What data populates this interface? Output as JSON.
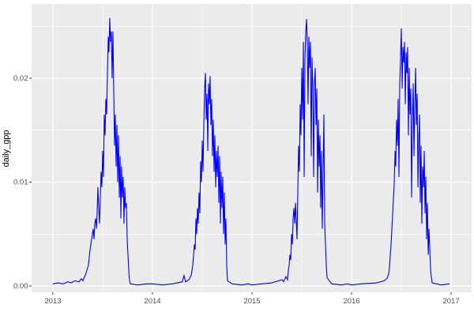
{
  "figure": {
    "bg": "#FFFFFF",
    "panel_bg": "#EBEBEB",
    "grid_major_color": "#FFFFFF",
    "grid_minor_color": "#FFFFFF",
    "tick_mark_color": "#333333",
    "tick_text_color": "#4D4D4D",
    "axis_title_color": "#000000",
    "line_color": "#0000FF"
  },
  "chart_data": {
    "type": "line",
    "title": "",
    "xlabel": "",
    "ylabel": "daily_gpp",
    "grid": true,
    "legend": false,
    "theme": "ggplot-gray",
    "xlim": [
      2012.786,
      2017.206
    ],
    "ylim": [
      -0.00061,
      0.02715
    ],
    "x_ticks": [
      2013,
      2014,
      2015,
      2016,
      2017
    ],
    "x_tick_labels": [
      "2013",
      "2014",
      "2015",
      "2016",
      "2017"
    ],
    "x_minor": [
      2013.5,
      2014.5,
      2015.5,
      2016.5
    ],
    "y_ticks": [
      0.0,
      0.01,
      0.02
    ],
    "y_tick_labels": [
      "0.00",
      "0.01",
      "0.02"
    ],
    "y_minor": [
      0.005,
      0.015,
      0.025
    ],
    "series": [
      {
        "name": "daily_gpp",
        "color": "#0000FF",
        "points": [
          [
            2013.0,
            0.0002
          ],
          [
            2013.05,
            0.0003
          ],
          [
            2013.103,
            0.0002
          ],
          [
            2013.15,
            0.0004
          ],
          [
            2013.183,
            0.0003
          ],
          [
            2013.222,
            0.0005
          ],
          [
            2013.262,
            0.0004
          ],
          [
            2013.286,
            0.0007
          ],
          [
            2013.302,
            0.0005
          ],
          [
            2013.317,
            0.0009
          ],
          [
            2013.325,
            0.001
          ],
          [
            2013.341,
            0.0015
          ],
          [
            2013.357,
            0.002
          ],
          [
            2013.373,
            0.0035
          ],
          [
            2013.381,
            0.004
          ],
          [
            2013.397,
            0.005
          ],
          [
            2013.405,
            0.0055
          ],
          [
            2013.413,
            0.0045
          ],
          [
            2013.421,
            0.006
          ],
          [
            2013.429,
            0.0065
          ],
          [
            2013.437,
            0.0055
          ],
          [
            2013.444,
            0.007
          ],
          [
            2013.452,
            0.0095
          ],
          [
            2013.46,
            0.0075
          ],
          [
            2013.468,
            0.006
          ],
          [
            2013.476,
            0.0085
          ],
          [
            2013.484,
            0.011
          ],
          [
            2013.492,
            0.0095
          ],
          [
            2013.5,
            0.013
          ],
          [
            2013.508,
            0.0105
          ],
          [
            2013.516,
            0.0165
          ],
          [
            2013.524,
            0.0145
          ],
          [
            2013.532,
            0.018
          ],
          [
            2013.54,
            0.0165
          ],
          [
            2013.548,
            0.0205
          ],
          [
            2013.556,
            0.024
          ],
          [
            2013.563,
            0.0225
          ],
          [
            2013.571,
            0.0258
          ],
          [
            2013.579,
            0.0235
          ],
          [
            2013.587,
            0.0245
          ],
          [
            2013.595,
            0.02
          ],
          [
            2013.603,
            0.0245
          ],
          [
            2013.611,
            0.019
          ],
          [
            2013.619,
            0.0135
          ],
          [
            2013.627,
            0.0165
          ],
          [
            2013.635,
            0.0115
          ],
          [
            2013.643,
            0.0155
          ],
          [
            2013.651,
            0.01
          ],
          [
            2013.659,
            0.0145
          ],
          [
            2013.667,
            0.0085
          ],
          [
            2013.675,
            0.0125
          ],
          [
            2013.683,
            0.0065
          ],
          [
            2013.69,
            0.0115
          ],
          [
            2013.698,
            0.0085
          ],
          [
            2013.706,
            0.0105
          ],
          [
            2013.714,
            0.006
          ],
          [
            2013.722,
            0.0095
          ],
          [
            2013.73,
            0.0075
          ],
          [
            2013.738,
            0.008
          ],
          [
            2013.746,
            0.0045
          ],
          [
            2013.754,
            0.003
          ],
          [
            2013.762,
            0.0015
          ],
          [
            2013.77,
            0.0005
          ],
          [
            2013.778,
            0.0002
          ],
          [
            2013.85,
            0.0001
          ],
          [
            2013.95,
            0.0002
          ],
          [
            2014.0,
            0.0002
          ],
          [
            2014.1,
            0.0001
          ],
          [
            2014.2,
            0.0002
          ],
          [
            2014.3,
            0.0004
          ],
          [
            2014.317,
            0.001
          ],
          [
            2014.333,
            0.0004
          ],
          [
            2014.365,
            0.0006
          ],
          [
            2014.389,
            0.001
          ],
          [
            2014.397,
            0.0015
          ],
          [
            2014.405,
            0.002
          ],
          [
            2014.413,
            0.003
          ],
          [
            2014.421,
            0.004
          ],
          [
            2014.429,
            0.0035
          ],
          [
            2014.437,
            0.0065
          ],
          [
            2014.444,
            0.005
          ],
          [
            2014.452,
            0.0075
          ],
          [
            2014.46,
            0.006
          ],
          [
            2014.468,
            0.009
          ],
          [
            2014.476,
            0.007
          ],
          [
            2014.484,
            0.012
          ],
          [
            2014.492,
            0.01
          ],
          [
            2014.5,
            0.014
          ],
          [
            2014.508,
            0.011
          ],
          [
            2014.516,
            0.0155
          ],
          [
            2014.524,
            0.019
          ],
          [
            2014.532,
            0.0205
          ],
          [
            2014.54,
            0.016
          ],
          [
            2014.548,
            0.0185
          ],
          [
            2014.556,
            0.013
          ],
          [
            2014.563,
            0.0195
          ],
          [
            2014.571,
            0.0175
          ],
          [
            2014.579,
            0.0202
          ],
          [
            2014.587,
            0.0155
          ],
          [
            2014.595,
            0.018
          ],
          [
            2014.603,
            0.0125
          ],
          [
            2014.611,
            0.016
          ],
          [
            2014.619,
            0.011
          ],
          [
            2014.627,
            0.0145
          ],
          [
            2014.635,
            0.0095
          ],
          [
            2014.643,
            0.013
          ],
          [
            2014.651,
            0.0105
          ],
          [
            2014.659,
            0.0135
          ],
          [
            2014.667,
            0.008
          ],
          [
            2014.675,
            0.0125
          ],
          [
            2014.683,
            0.006
          ],
          [
            2014.69,
            0.011
          ],
          [
            2014.698,
            0.0075
          ],
          [
            2014.706,
            0.0105
          ],
          [
            2014.714,
            0.005
          ],
          [
            2014.722,
            0.009
          ],
          [
            2014.73,
            0.004
          ],
          [
            2014.738,
            0.0065
          ],
          [
            2014.746,
            0.002
          ],
          [
            2014.754,
            0.0005
          ],
          [
            2014.8,
            0.0002
          ],
          [
            2014.9,
            0.0001
          ],
          [
            2014.96,
            0.0002
          ],
          [
            2015.0,
            0.0001
          ],
          [
            2015.1,
            0.0002
          ],
          [
            2015.2,
            0.0003
          ],
          [
            2015.302,
            0.0006
          ],
          [
            2015.317,
            0.0004
          ],
          [
            2015.341,
            0.0009
          ],
          [
            2015.357,
            0.0006
          ],
          [
            2015.365,
            0.0015
          ],
          [
            2015.373,
            0.002
          ],
          [
            2015.381,
            0.003
          ],
          [
            2015.389,
            0.0025
          ],
          [
            2015.397,
            0.005
          ],
          [
            2015.405,
            0.004
          ],
          [
            2015.413,
            0.0065
          ],
          [
            2015.421,
            0.0075
          ],
          [
            2015.429,
            0.006
          ],
          [
            2015.437,
            0.008
          ],
          [
            2015.444,
            0.0065
          ],
          [
            2015.452,
            0.0045
          ],
          [
            2015.46,
            0.009
          ],
          [
            2015.468,
            0.0135
          ],
          [
            2015.476,
            0.011
          ],
          [
            2015.484,
            0.0175
          ],
          [
            2015.492,
            0.0145
          ],
          [
            2015.5,
            0.021
          ],
          [
            2015.508,
            0.016
          ],
          [
            2015.516,
            0.0235
          ],
          [
            2015.524,
            0.0105
          ],
          [
            2015.532,
            0.022
          ],
          [
            2015.54,
            0.0245
          ],
          [
            2015.548,
            0.0257
          ],
          [
            2015.556,
            0.023
          ],
          [
            2015.563,
            0.0175
          ],
          [
            2015.571,
            0.024
          ],
          [
            2015.579,
            0.021
          ],
          [
            2015.587,
            0.0235
          ],
          [
            2015.595,
            0.0125
          ],
          [
            2015.603,
            0.022
          ],
          [
            2015.611,
            0.019
          ],
          [
            2015.619,
            0.0105
          ],
          [
            2015.627,
            0.0195
          ],
          [
            2015.635,
            0.021
          ],
          [
            2015.643,
            0.0155
          ],
          [
            2015.651,
            0.019
          ],
          [
            2015.659,
            0.009
          ],
          [
            2015.667,
            0.016
          ],
          [
            2015.675,
            0.0115
          ],
          [
            2015.683,
            0.0145
          ],
          [
            2015.69,
            0.0075
          ],
          [
            2015.698,
            0.013
          ],
          [
            2015.706,
            0.0055
          ],
          [
            2015.714,
            0.011
          ],
          [
            2015.722,
            0.0165
          ],
          [
            2015.73,
            0.006
          ],
          [
            2015.738,
            0.004
          ],
          [
            2015.746,
            0.002
          ],
          [
            2015.754,
            0.0008
          ],
          [
            2015.8,
            0.0002
          ],
          [
            2015.9,
            0.0001
          ],
          [
            2015.96,
            0.0002
          ],
          [
            2016.0,
            0.0001
          ],
          [
            2016.1,
            0.0002
          ],
          [
            2016.25,
            0.0003
          ],
          [
            2016.33,
            0.0005
          ],
          [
            2016.36,
            0.0008
          ],
          [
            2016.373,
            0.0012
          ],
          [
            2016.381,
            0.0018
          ],
          [
            2016.389,
            0.003
          ],
          [
            2016.397,
            0.004
          ],
          [
            2016.405,
            0.0055
          ],
          [
            2016.413,
            0.007
          ],
          [
            2016.421,
            0.0085
          ],
          [
            2016.429,
            0.01
          ],
          [
            2016.437,
            0.013
          ],
          [
            2016.444,
            0.0115
          ],
          [
            2016.452,
            0.016
          ],
          [
            2016.46,
            0.0135
          ],
          [
            2016.468,
            0.018
          ],
          [
            2016.476,
            0.0105
          ],
          [
            2016.484,
            0.0195
          ],
          [
            2016.492,
            0.022
          ],
          [
            2016.5,
            0.0248
          ],
          [
            2016.508,
            0.019
          ],
          [
            2016.516,
            0.023
          ],
          [
            2016.524,
            0.0215
          ],
          [
            2016.532,
            0.0235
          ],
          [
            2016.54,
            0.0175
          ],
          [
            2016.548,
            0.0225
          ],
          [
            2016.556,
            0.0205
          ],
          [
            2016.563,
            0.023
          ],
          [
            2016.571,
            0.0145
          ],
          [
            2016.579,
            0.021
          ],
          [
            2016.587,
            0.0165
          ],
          [
            2016.595,
            0.019
          ],
          [
            2016.603,
            0.0085
          ],
          [
            2016.611,
            0.016
          ],
          [
            2016.619,
            0.0195
          ],
          [
            2016.627,
            0.0125
          ],
          [
            2016.635,
            0.0175
          ],
          [
            2016.643,
            0.021
          ],
          [
            2016.651,
            0.0155
          ],
          [
            2016.659,
            0.0185
          ],
          [
            2016.667,
            0.0095
          ],
          [
            2016.675,
            0.014
          ],
          [
            2016.683,
            0.0165
          ],
          [
            2016.69,
            0.008
          ],
          [
            2016.698,
            0.0135
          ],
          [
            2016.706,
            0.006
          ],
          [
            2016.714,
            0.0115
          ],
          [
            2016.722,
            0.0095
          ],
          [
            2016.73,
            0.013
          ],
          [
            2016.738,
            0.007
          ],
          [
            2016.746,
            0.0105
          ],
          [
            2016.754,
            0.0045
          ],
          [
            2016.762,
            0.008
          ],
          [
            2016.77,
            0.003
          ],
          [
            2016.778,
            0.0055
          ],
          [
            2016.786,
            0.0035
          ],
          [
            2016.794,
            0.0015
          ],
          [
            2016.802,
            0.0008
          ],
          [
            2016.81,
            0.0003
          ],
          [
            2016.9,
            0.0001
          ],
          [
            2016.984,
            0.0002
          ]
        ]
      }
    ]
  }
}
